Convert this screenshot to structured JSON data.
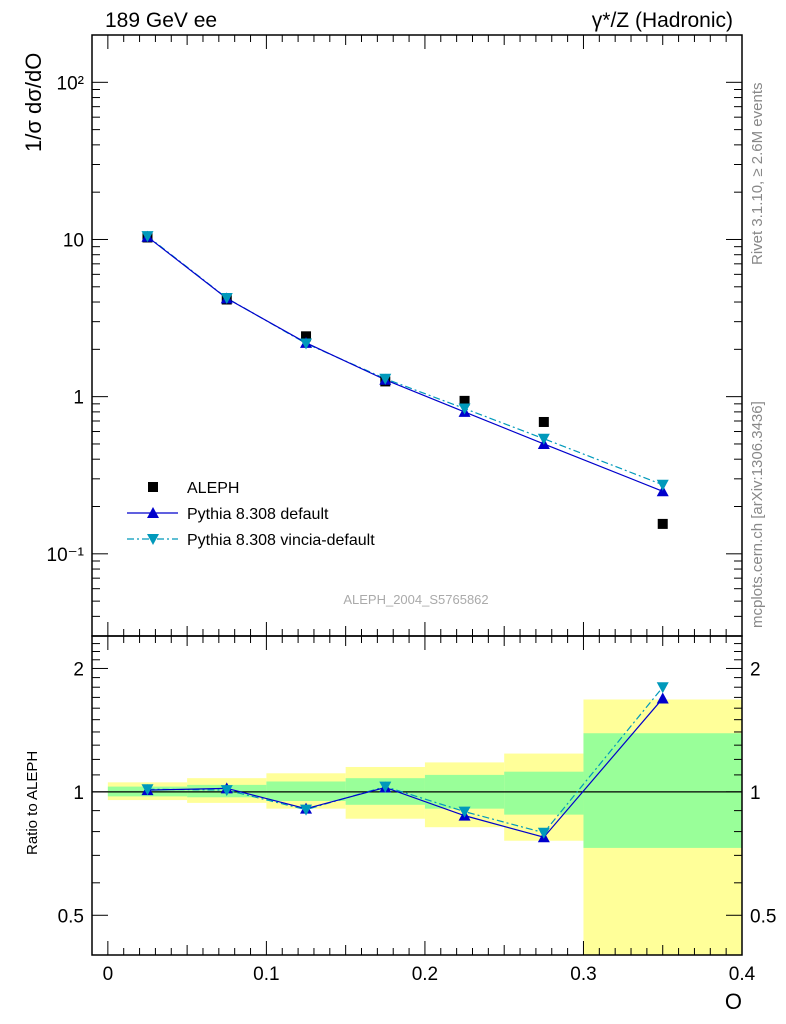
{
  "header": {
    "left": "189 GeV ee",
    "right": "γ*/Z (Hadronic)"
  },
  "side_text": {
    "rivet": "Rivet 3.1.10, ≥ 2.6M events",
    "mcplots": "mcplots.cern.ch [arXiv:1306.3436]"
  },
  "watermark": "ALEPH_2004_S5765862",
  "colors": {
    "data": "#000000",
    "pythia_default": "#0000cc",
    "vincia": "#0099bb",
    "band_inner": "#99ff99",
    "band_outer": "#ffff99"
  },
  "chart_data": [
    {
      "type": "line",
      "ylabel": "1/σ  dσ/dO",
      "yscale": "log",
      "ylim": [
        0.03,
        200
      ],
      "xlim": [
        -0.01,
        0.4
      ],
      "y_tick_labels": [
        "10⁻¹",
        "1",
        "10",
        "10²"
      ],
      "legend": "bottom-left",
      "x": [
        0.025,
        0.075,
        0.125,
        0.175,
        0.225,
        0.275,
        0.35
      ],
      "series": [
        {
          "name": "ALEPH",
          "style": "markers",
          "values": [
            10.3,
            4.15,
            2.42,
            1.25,
            0.94,
            0.69,
            0.155
          ]
        },
        {
          "name": "Pythia 8.308 default",
          "style": "solid-line-up-triangle",
          "values": [
            10.4,
            4.22,
            2.2,
            1.28,
            0.8,
            0.5,
            0.25
          ]
        },
        {
          "name": "Pythia 8.308 vincia-default",
          "style": "dashdot-line-down-triangle",
          "values": [
            10.5,
            4.24,
            2.18,
            1.3,
            0.84,
            0.54,
            0.275
          ]
        }
      ]
    },
    {
      "type": "line",
      "ylabel": "Ratio to ALEPH",
      "yscale": "log",
      "ylim": [
        0.4,
        2.4
      ],
      "xlim": [
        -0.01,
        0.4
      ],
      "xlabel": "O",
      "x_ticks": [
        0,
        0.1,
        0.2,
        0.3,
        0.4
      ],
      "x_tick_labels": [
        "0",
        "0.1",
        "0.2",
        "0.3",
        "0.4"
      ],
      "y_tick_labels": [
        "0.5",
        "1",
        "2"
      ],
      "y_tick_values": [
        0.5,
        1,
        2
      ],
      "reference_line": 1,
      "bands": {
        "x_edges": [
          0,
          0.05,
          0.1,
          0.15,
          0.2,
          0.25,
          0.3,
          0.4
        ],
        "inner": [
          [
            0.975,
            1.03
          ],
          [
            0.97,
            1.04
          ],
          [
            0.95,
            1.06
          ],
          [
            0.93,
            1.08
          ],
          [
            0.91,
            1.1
          ],
          [
            0.88,
            1.12
          ],
          [
            0.73,
            1.39
          ]
        ],
        "outer": [
          [
            0.955,
            1.055
          ],
          [
            0.94,
            1.08
          ],
          [
            0.91,
            1.11
          ],
          [
            0.86,
            1.15
          ],
          [
            0.82,
            1.18
          ],
          [
            0.76,
            1.24
          ],
          [
            0.35,
            1.68
          ]
        ]
      },
      "x": [
        0.025,
        0.075,
        0.125,
        0.175,
        0.225,
        0.275,
        0.35
      ],
      "series": [
        {
          "name": "Pythia 8.308 default",
          "values": [
            1.01,
            1.02,
            0.91,
            1.025,
            0.875,
            0.775,
            1.69
          ]
        },
        {
          "name": "Pythia 8.308 vincia-default",
          "values": [
            1.015,
            1.01,
            0.905,
            1.03,
            0.895,
            0.795,
            1.8
          ]
        }
      ]
    }
  ]
}
